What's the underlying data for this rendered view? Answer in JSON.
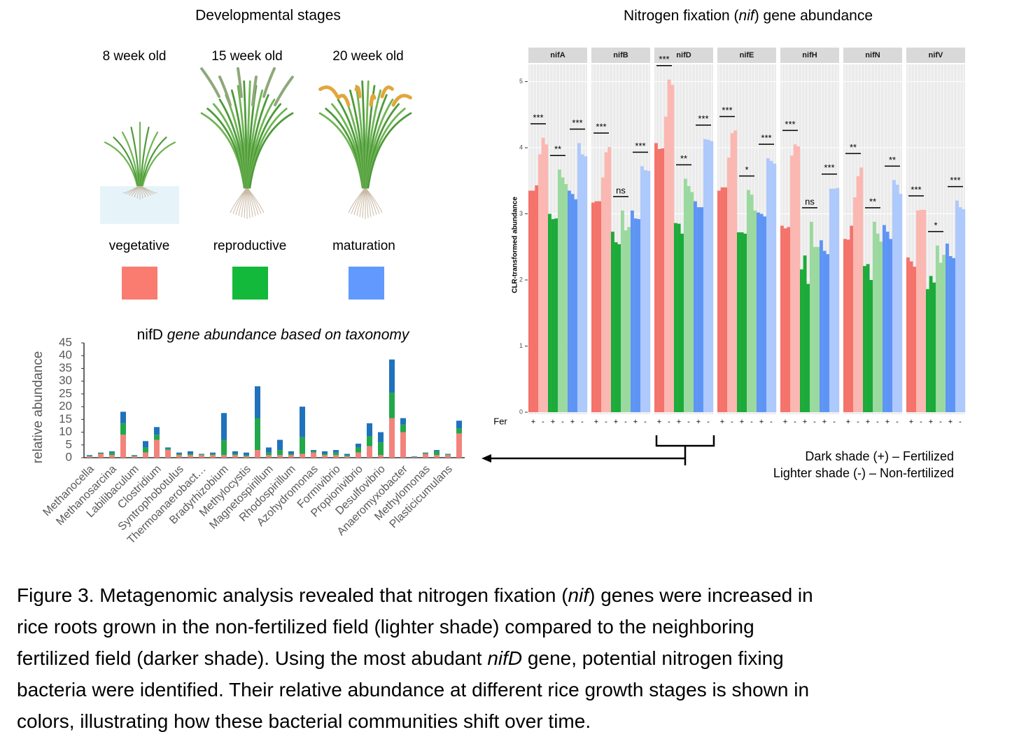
{
  "stages": {
    "title": "Developmental stages",
    "items": [
      {
        "age": "8 week old",
        "name": "vegetative",
        "color": "#fa7c70"
      },
      {
        "age": "15 week old",
        "name": "reproductive",
        "color": "#13b93a"
      },
      {
        "age": "20 week old",
        "name": "maturation",
        "color": "#6199ff"
      }
    ]
  },
  "chart_data": [
    {
      "type": "stacked_bar",
      "title": [
        "nifD",
        " gene abundance based on taxonomy"
      ],
      "ylabel": "relative abundance",
      "ylim": [
        0,
        45
      ],
      "yticks": [
        0,
        5,
        10,
        15,
        20,
        25,
        30,
        35,
        40,
        45
      ],
      "categories": [
        "Methanocella",
        null,
        "Methanosarcina",
        null,
        "Labilibaculum",
        null,
        "Clostridium",
        null,
        "Syntrophobotulus",
        null,
        "Thermoanaerobact…",
        null,
        "Bradyrhizobium",
        null,
        "Methylocystis",
        null,
        "Magnetospirillum",
        null,
        "Rhodospirillum",
        null,
        "Azohydromonas",
        null,
        "Formivibrio",
        null,
        "Propionivibrio",
        null,
        "Desulfovibrio",
        null,
        "Anaeromyxobacter",
        null,
        "Methylomonas",
        null,
        "Plasticicumulans",
        null
      ],
      "series": [
        {
          "color": "#f2837c",
          "values": [
            0.5,
            1.5,
            1,
            9,
            0.5,
            2,
            7,
            3,
            1,
            1,
            1,
            1,
            1,
            1,
            0.5,
            3,
            1,
            1,
            1,
            1.5,
            2,
            1,
            1,
            0.5,
            2,
            4.5,
            1,
            15.5,
            10,
            0.2,
            1.5,
            1,
            1,
            9.5
          ]
        },
        {
          "color": "#22a84a",
          "values": [
            0.2,
            0.3,
            1,
            4.5,
            0.3,
            2,
            2,
            0.5,
            0.5,
            0.5,
            0.3,
            0.5,
            6,
            0.5,
            0.5,
            12.5,
            1,
            2,
            0.5,
            6.5,
            0.5,
            0.5,
            1,
            0.5,
            2,
            4,
            5,
            10,
            3,
            0.1,
            0.3,
            1.5,
            0.3,
            2
          ]
        },
        {
          "color": "#1f72bb",
          "values": [
            0.3,
            0.2,
            0.5,
            4.5,
            0.2,
            2.5,
            3,
            0.5,
            0.5,
            1,
            0.2,
            0.5,
            10.5,
            1,
            1,
            12.5,
            2,
            4,
            1,
            12,
            0.5,
            1,
            1,
            0.5,
            1.5,
            5,
            4,
            13,
            2.5,
            0.2,
            0.2,
            0.5,
            0.2,
            3
          ]
        }
      ]
    },
    {
      "type": "facet_bar",
      "title": [
        "Nitrogen fixation (",
        "nif",
        ") gene abundance"
      ],
      "ylabel": "CLR-transformed abundance",
      "ylim": [
        0,
        5.26
      ],
      "yticks": [
        0,
        1,
        2,
        3,
        4,
        5
      ],
      "grid": true,
      "fertilizer_label": "Fer",
      "fertilizer": [
        "+",
        "-",
        "+",
        "-",
        "+",
        "-"
      ],
      "group_colors": [
        "#f4736a",
        "#fbb7b1",
        "#1cab3a",
        "#9bd99f",
        "#5e95f5",
        "#aec9fb"
      ],
      "facets": [
        {
          "title": "nifA",
          "values": [
            [
              3.35,
              3.35,
              3.43
            ],
            [
              3.9,
              4.15,
              4.05
            ],
            [
              3.0,
              2.92,
              2.93
            ],
            [
              3.67,
              3.55,
              3.45
            ],
            [
              3.35,
              3.3,
              3.22
            ],
            [
              4.07,
              3.9,
              3.87
            ]
          ],
          "significance": [
            "***",
            "**",
            "***"
          ]
        },
        {
          "title": "nifB",
          "values": [
            [
              3.17,
              3.19,
              3.19
            ],
            [
              3.55,
              3.93,
              4.01
            ],
            [
              2.73,
              2.57,
              2.54
            ],
            [
              3.05,
              2.75,
              2.8
            ],
            [
              3.05,
              2.93,
              2.92
            ],
            [
              3.72,
              3.66,
              3.65
            ]
          ],
          "significance": [
            "***",
            "ns",
            "***"
          ]
        },
        {
          "title": "nifD",
          "values": [
            [
              4.07,
              3.98,
              3.99
            ],
            [
              4.47,
              5.03,
              4.95
            ],
            [
              2.86,
              2.85,
              2.7
            ],
            [
              3.53,
              3.42,
              3.33
            ],
            [
              3.19,
              3.1,
              3.1
            ],
            [
              4.13,
              4.12,
              4.1
            ]
          ],
          "significance": [
            "***",
            "**",
            "***"
          ]
        },
        {
          "title": "nifE",
          "values": [
            [
              3.35,
              3.4,
              3.4
            ],
            [
              3.85,
              4.22,
              4.26
            ],
            [
              2.72,
              2.72,
              2.7
            ],
            [
              3.36,
              3.29,
              3.05
            ],
            [
              3.02,
              3.0,
              2.96
            ],
            [
              3.84,
              3.8,
              3.76
            ]
          ],
          "significance": [
            "***",
            "*",
            "***"
          ]
        },
        {
          "title": "nifH",
          "values": [
            [
              2.82,
              2.78,
              2.8
            ],
            [
              3.88,
              4.05,
              4.02
            ],
            [
              2.16,
              2.37,
              1.94
            ],
            [
              2.88,
              2.5,
              2.5
            ],
            [
              2.6,
              2.44,
              2.39
            ],
            [
              3.38,
              3.38,
              3.39
            ]
          ],
          "significance": [
            "***",
            "ns",
            "***"
          ]
        },
        {
          "title": "nifN",
          "values": [
            [
              2.62,
              2.61,
              2.82
            ],
            [
              3.25,
              3.57,
              3.7
            ],
            [
              2.21,
              2.24,
              2.0
            ],
            [
              2.88,
              2.7,
              2.58
            ],
            [
              2.83,
              2.73,
              2.62
            ],
            [
              3.51,
              3.44,
              3.3
            ]
          ],
          "significance": [
            "**",
            "**",
            "**"
          ]
        },
        {
          "title": "nifV",
          "values": [
            [
              2.34,
              2.28,
              2.2
            ],
            [
              3.05,
              3.06,
              3.06
            ],
            [
              1.86,
              2.06,
              1.96
            ],
            [
              2.52,
              2.26,
              2.38
            ],
            [
              2.55,
              2.36,
              2.33
            ],
            [
              3.2,
              3.1,
              3.07
            ]
          ],
          "significance": [
            "***",
            "*",
            "***"
          ]
        }
      ],
      "legend": [
        "Dark shade (+)  – Fertilized",
        "Lighter shade (-) – Non-fertilized"
      ]
    }
  ],
  "caption": [
    [
      "Figure 3. Metagenomic analysis revealed that nitrogen fixation (",
      "nif",
      ") genes were increased in"
    ],
    [
      "rice roots grown in the non-fertilized field (lighter shade) compared to the neighboring"
    ],
    [
      "fertilized field (darker shade). Using the most abudant ",
      "nifD",
      " gene, potential nitrogen fixing"
    ],
    [
      "bacteria were identified. Their relative abundance at different rice growth stages is shown in"
    ],
    [
      "colors, illustrating how these bacterial communities shift over time."
    ]
  ]
}
